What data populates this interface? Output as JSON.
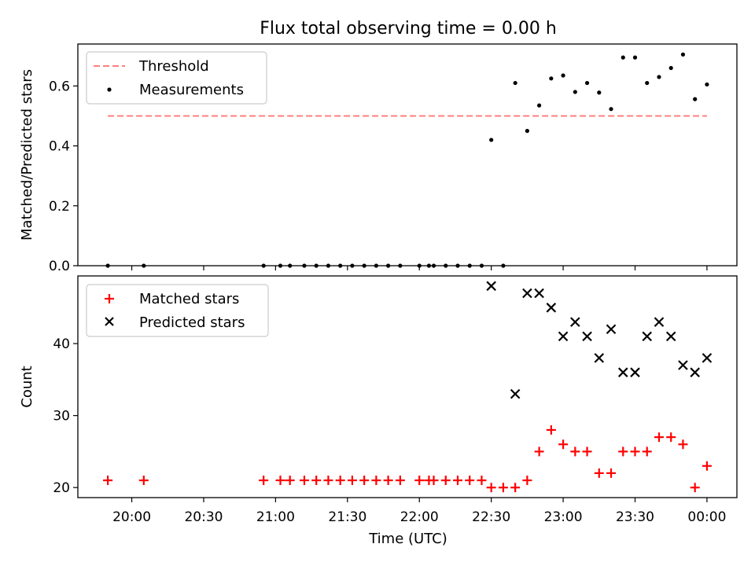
{
  "chart_data": [
    {
      "type": "scatter",
      "title": "Flux total observing time = 0.00 h",
      "ylabel": "Matched/Predicted stars",
      "xlabel": "",
      "ylim": [
        0,
        0.74
      ],
      "yticks": [
        0.0,
        0.2,
        0.4,
        0.6
      ],
      "ytick_labels": [
        "0.0",
        "0.2",
        "0.4",
        "0.6"
      ],
      "legend_position": "top-left",
      "grid": false,
      "series": [
        {
          "name": "Threshold",
          "kind": "dashed-line",
          "color": "#ff7f7f",
          "x": [
            "19:50",
            "00:00"
          ],
          "y": [
            0.5,
            0.5
          ]
        },
        {
          "name": "Measurements",
          "kind": "dot",
          "color": "#000000",
          "x": [
            "19:50",
            "20:05",
            "20:55",
            "21:02",
            "21:06",
            "21:12",
            "21:17",
            "21:22",
            "21:27",
            "21:32",
            "21:37",
            "21:42",
            "21:47",
            "21:52",
            "22:00",
            "22:04",
            "22:06",
            "22:11",
            "22:16",
            "22:21",
            "22:26",
            "22:30",
            "22:35",
            "22:40",
            "22:45",
            "22:50",
            "22:55",
            "23:00",
            "23:05",
            "23:10",
            "23:15",
            "23:20",
            "23:25",
            "23:30",
            "23:35",
            "23:40",
            "23:45",
            "23:50",
            "23:55",
            "00:00"
          ],
          "y": [
            0,
            0,
            0,
            0,
            0,
            0,
            0,
            0,
            0,
            0,
            0,
            0,
            0,
            0,
            0,
            0,
            0,
            0,
            0,
            0,
            0,
            0.42,
            0,
            0.61,
            0.45,
            0.535,
            0.625,
            0.635,
            0.58,
            0.61,
            0.578,
            0.523,
            0.695,
            0.695,
            0.61,
            0.63,
            0.66,
            0.705,
            0.556,
            0.605
          ]
        }
      ]
    },
    {
      "type": "scatter",
      "title": "",
      "ylabel": "Count",
      "xlabel": "Time (UTC)",
      "ylim": [
        18.6,
        49.4
      ],
      "yticks": [
        20,
        30,
        40
      ],
      "ytick_labels": [
        "20",
        "30",
        "40"
      ],
      "xtick_labels": [
        "20:00",
        "20:30",
        "21:00",
        "21:30",
        "22:00",
        "22:30",
        "23:00",
        "23:30",
        "00:00"
      ],
      "legend_position": "top-left",
      "grid": false,
      "series": [
        {
          "name": "Matched stars",
          "kind": "plus",
          "color": "#ff0000",
          "x": [
            "19:50",
            "20:05",
            "20:55",
            "21:02",
            "21:06",
            "21:12",
            "21:17",
            "21:22",
            "21:27",
            "21:32",
            "21:37",
            "21:42",
            "21:47",
            "21:52",
            "22:00",
            "22:04",
            "22:06",
            "22:11",
            "22:16",
            "22:21",
            "22:26",
            "22:30",
            "22:35",
            "22:40",
            "22:45",
            "22:50",
            "22:55",
            "23:00",
            "23:05",
            "23:10",
            "23:15",
            "23:20",
            "23:25",
            "23:30",
            "23:35",
            "23:40",
            "23:45",
            "23:50",
            "23:55",
            "00:00"
          ],
          "y": [
            21,
            21,
            21,
            21,
            21,
            21,
            21,
            21,
            21,
            21,
            21,
            21,
            21,
            21,
            21,
            21,
            21,
            21,
            21,
            21,
            21,
            20,
            20,
            20,
            21,
            25,
            28,
            26,
            25,
            25,
            22,
            22,
            25,
            25,
            25,
            27,
            27,
            26,
            20,
            23
          ]
        },
        {
          "name": "Predicted stars",
          "kind": "cross",
          "color": "#000000",
          "x": [
            "22:30",
            "22:40",
            "22:45",
            "22:50",
            "22:55",
            "23:00",
            "23:05",
            "23:10",
            "23:15",
            "23:20",
            "23:25",
            "23:30",
            "23:35",
            "23:40",
            "23:45",
            "23:50",
            "23:55",
            "00:00"
          ],
          "y": [
            48,
            33,
            47,
            47,
            45,
            41,
            43,
            41,
            38,
            42,
            36,
            36,
            41,
            43,
            41,
            37,
            36,
            38
          ]
        }
      ]
    }
  ]
}
